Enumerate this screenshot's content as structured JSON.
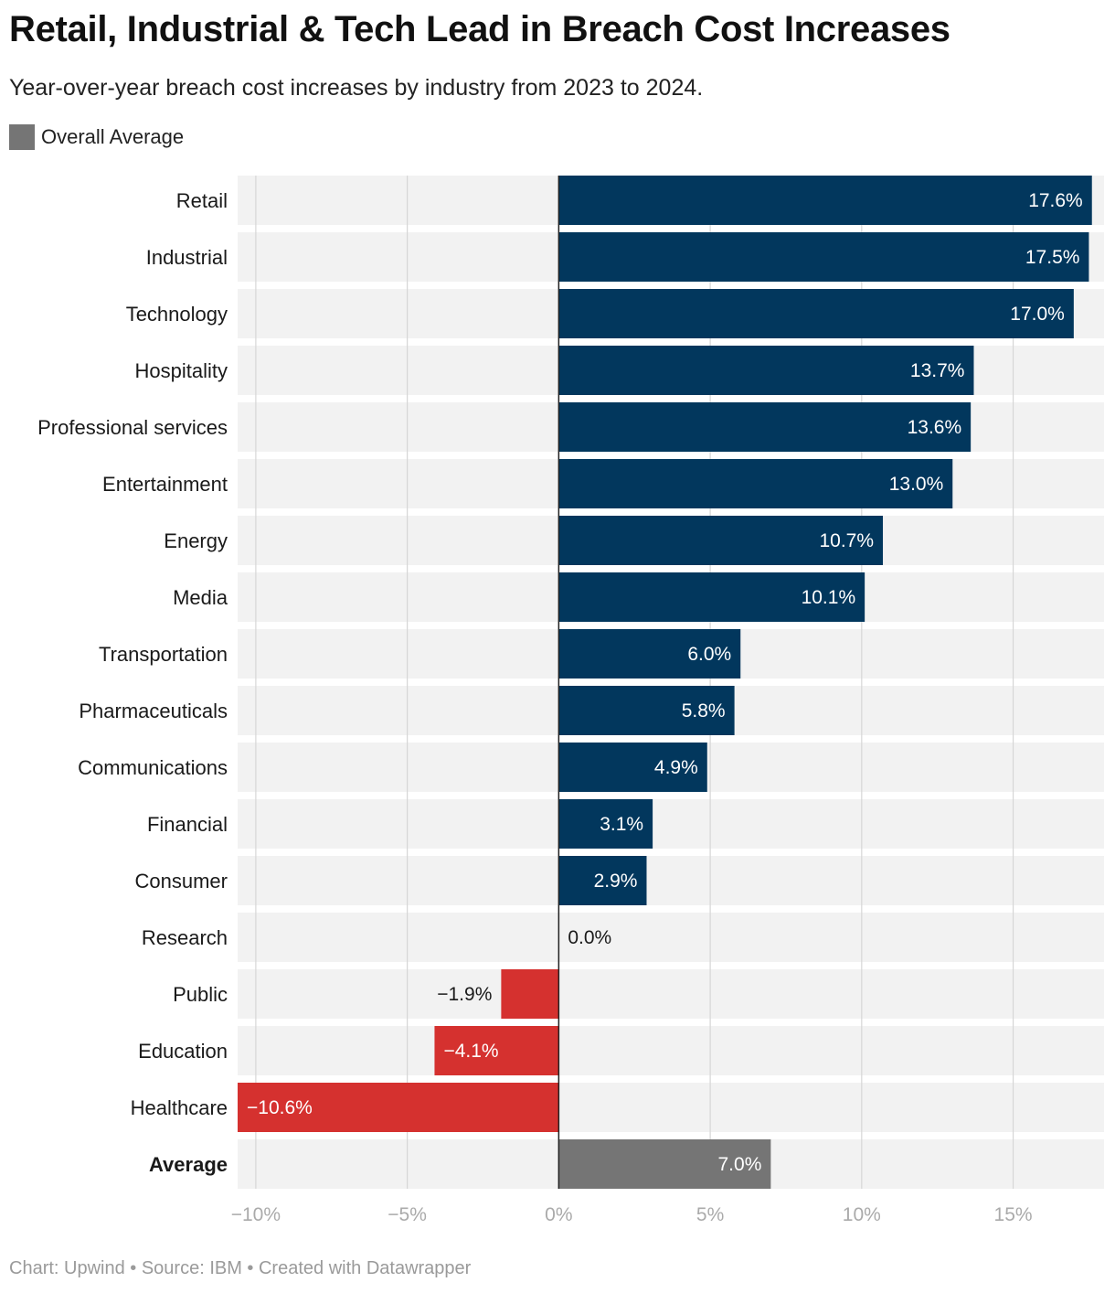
{
  "header": {
    "title": "Retail, Industrial & Tech Lead in Breach Cost Increases",
    "subtitle": "Year-over-year breach cost increases by industry from 2023 to 2024."
  },
  "legend": {
    "items": [
      {
        "label": "Overall Average",
        "color": "#757575"
      }
    ]
  },
  "colors": {
    "positive": "#02375d",
    "negative": "#d5312f",
    "average": "#757575",
    "row_background": "#f2f2f2",
    "gridline": "#d6d6d6",
    "axis_label": "#aaaaaa"
  },
  "chart_data": {
    "type": "bar",
    "orientation": "horizontal",
    "title": "Retail, Industrial & Tech Lead in Breach Cost Increases",
    "xlabel": "",
    "ylabel": "",
    "unit": "%",
    "xlim": [
      -10.6,
      18.0
    ],
    "xticks": [
      -10,
      -5,
      0,
      5,
      10,
      15
    ],
    "xtick_labels": [
      "−10%",
      "−5%",
      "0%",
      "5%",
      "10%",
      "15%"
    ],
    "categories": [
      "Retail",
      "Industrial",
      "Technology",
      "Hospitality",
      "Professional services",
      "Entertainment",
      "Energy",
      "Media",
      "Transportation",
      "Pharmaceuticals",
      "Communications",
      "Financial",
      "Consumer",
      "Research",
      "Public",
      "Education",
      "Healthcare",
      "Average"
    ],
    "values": [
      17.6,
      17.5,
      17.0,
      13.7,
      13.6,
      13.0,
      10.7,
      10.1,
      6.0,
      5.8,
      4.9,
      3.1,
      2.9,
      0.0,
      -1.9,
      -4.1,
      -10.6,
      7.0
    ],
    "value_labels": [
      "17.6%",
      "17.5%",
      "17.0%",
      "13.7%",
      "13.6%",
      "13.0%",
      "10.7%",
      "10.1%",
      "6.0%",
      "5.8%",
      "4.9%",
      "3.1%",
      "2.9%",
      "0.0%",
      "−1.9%",
      "−4.1%",
      "−10.6%",
      "7.0%"
    ],
    "highlight": "Average"
  },
  "footer": {
    "text": "Chart: Upwind • Source: IBM • Created with Datawrapper"
  }
}
